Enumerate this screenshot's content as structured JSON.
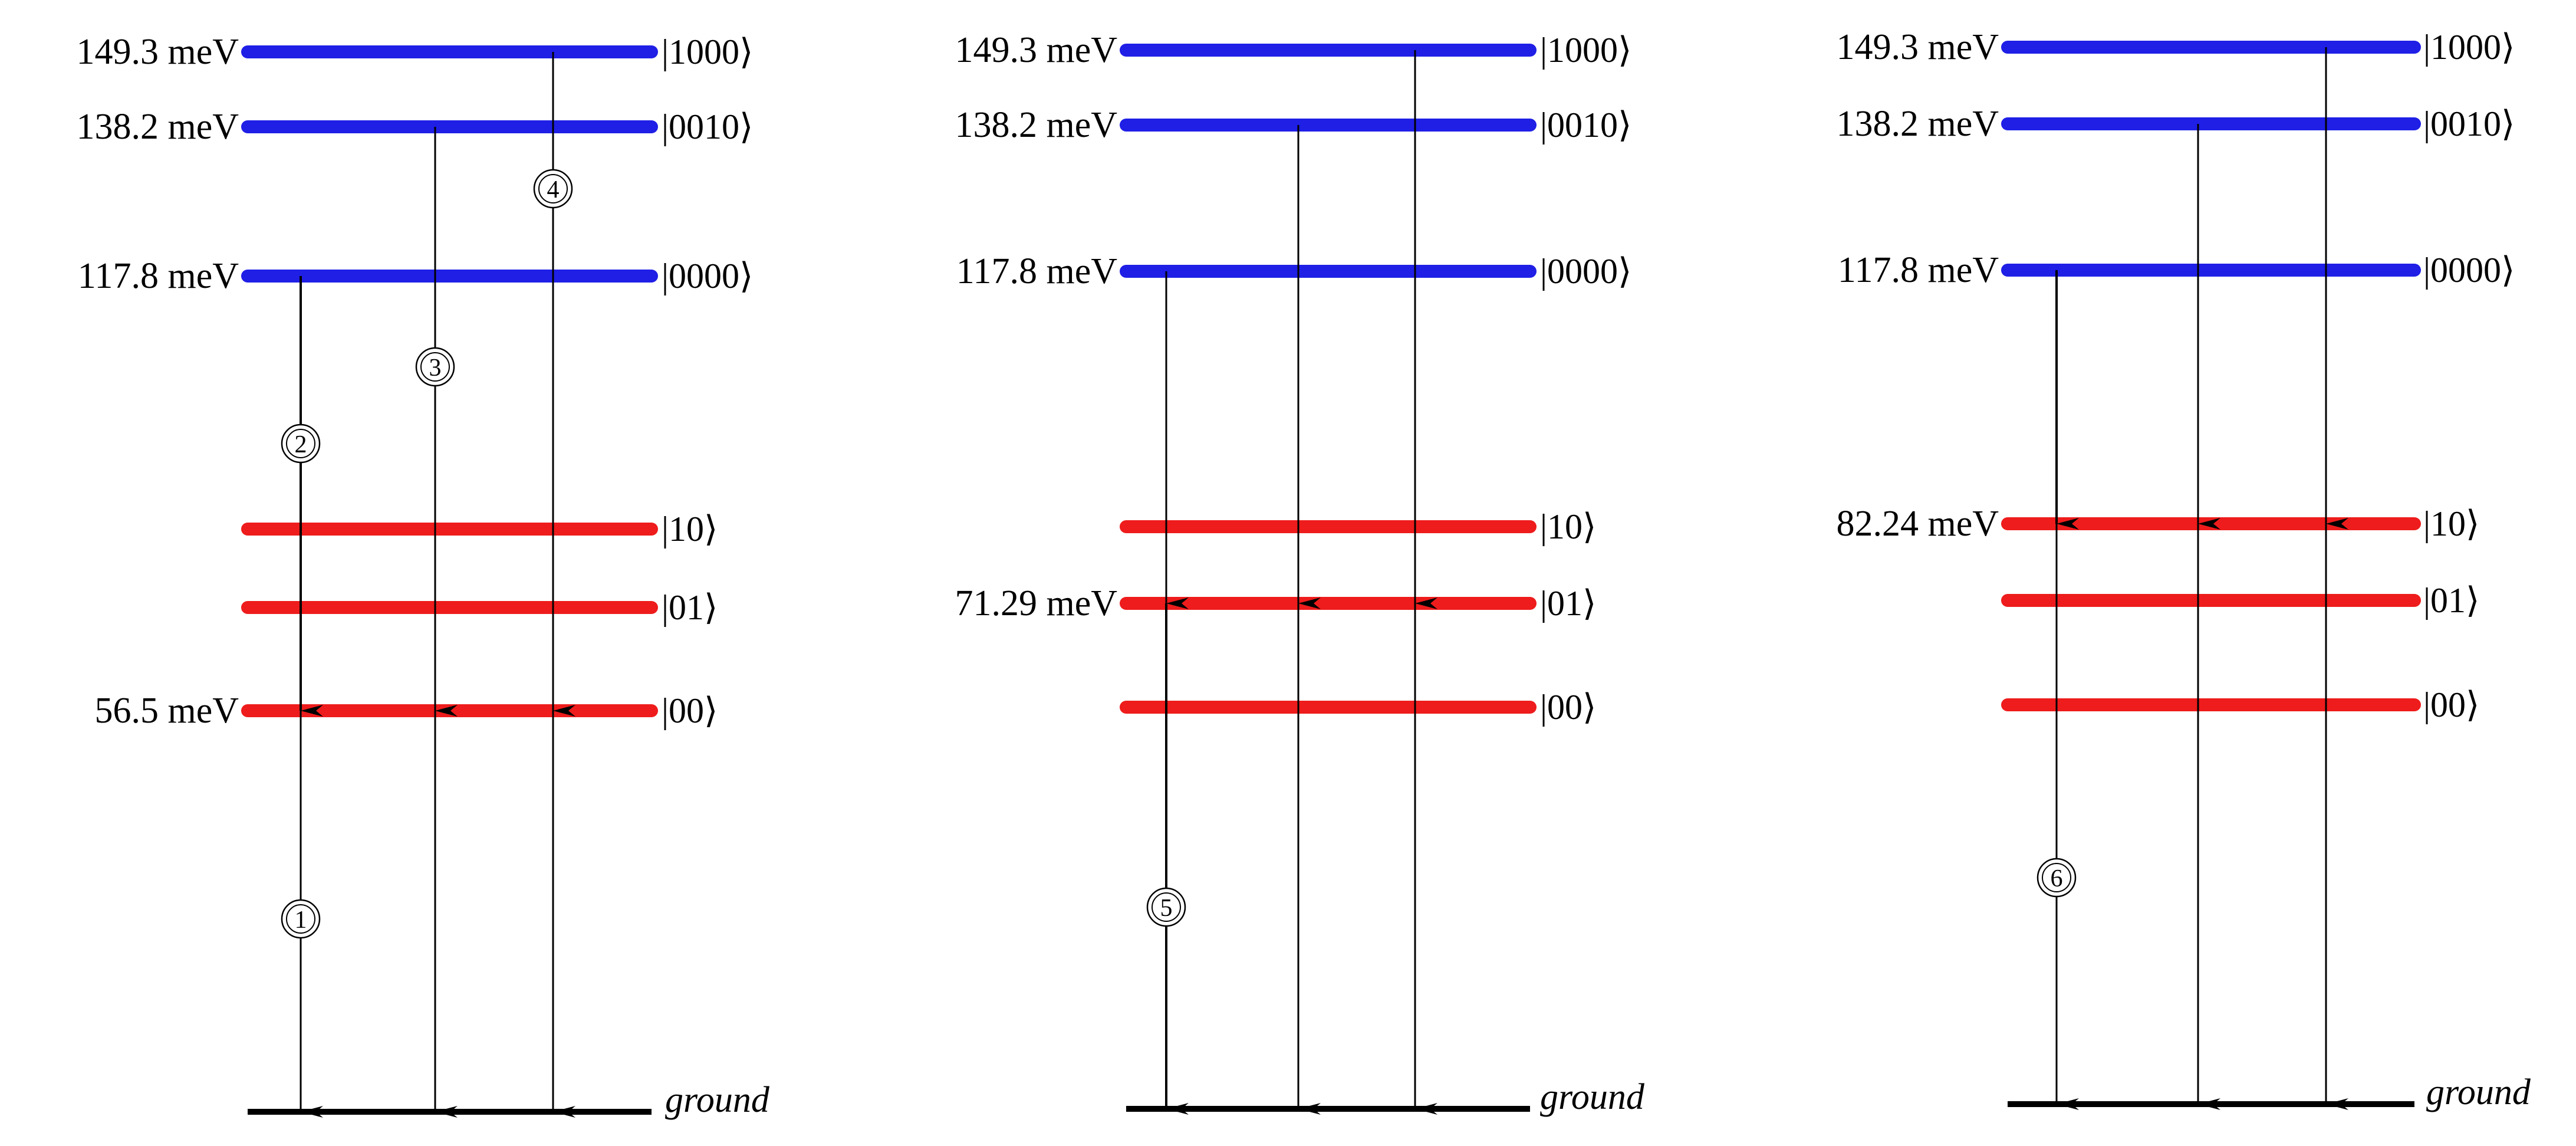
{
  "colors": {
    "upper_levels": "#1f1fe6",
    "lower_levels": "#ee1c1c",
    "ground_line": "#000000",
    "transition_line": "#000000"
  },
  "panels": [
    {
      "upper_labels": [
        "149.3 meV",
        "138.2 meV",
        "117.8 meV"
      ],
      "upper_kets": [
        "|1000⟩",
        "|0010⟩",
        "|0000⟩"
      ],
      "lower_labels": [
        "",
        "",
        "56.5 meV"
      ],
      "lower_kets": [
        "|10⟩",
        "|01⟩",
        "|00⟩"
      ],
      "ground_label": "ground",
      "markers": [
        "1",
        "2",
        "3",
        "4"
      ]
    },
    {
      "upper_labels": [
        "149.3 meV",
        "138.2 meV",
        "117.8 meV"
      ],
      "upper_kets": [
        "|1000⟩",
        "|0010⟩",
        "|0000⟩"
      ],
      "lower_labels": [
        "",
        "71.29 meV",
        ""
      ],
      "lower_kets": [
        "|10⟩",
        "|01⟩",
        "|00⟩"
      ],
      "ground_label": "ground",
      "markers": [
        "5"
      ]
    },
    {
      "upper_labels": [
        "149.3 meV",
        "138.2 meV",
        "117.8 meV"
      ],
      "upper_kets": [
        "|1000⟩",
        "|0010⟩",
        "|0000⟩"
      ],
      "lower_labels": [
        "82.24 meV",
        "",
        ""
      ],
      "lower_kets": [
        "|10⟩",
        "|01⟩",
        "|00⟩"
      ],
      "ground_label": "ground",
      "markers": [
        "6"
      ]
    }
  ]
}
